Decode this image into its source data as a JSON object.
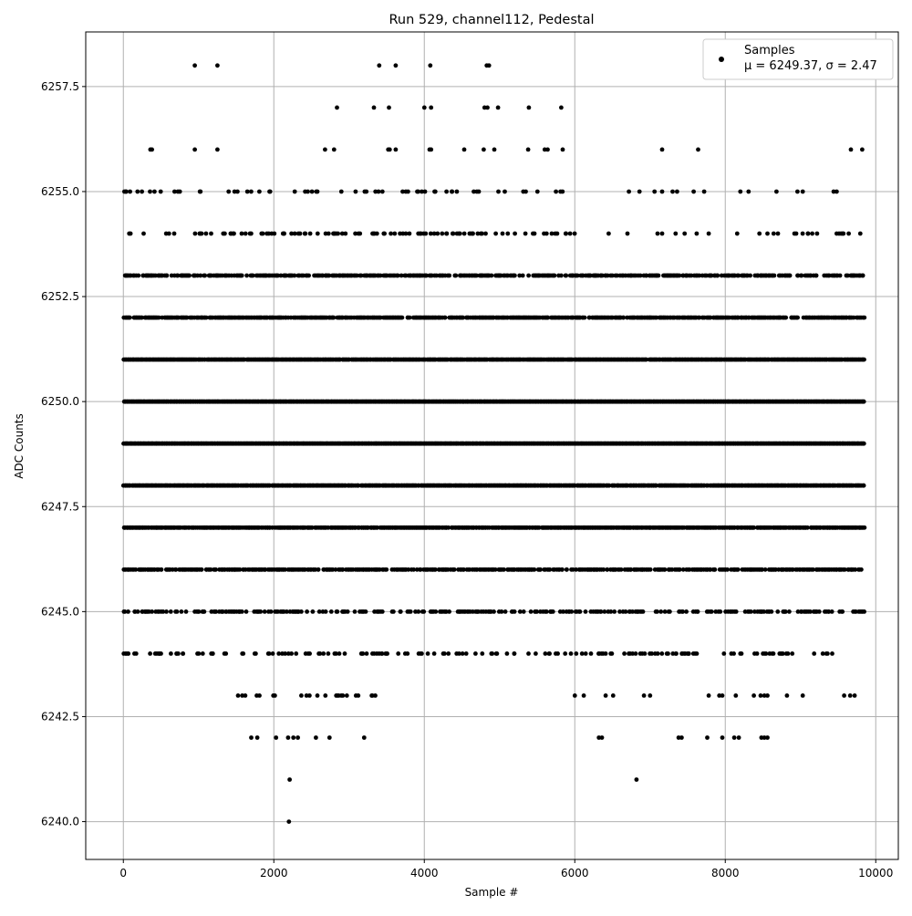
{
  "chart_data": {
    "type": "scatter",
    "title": "Run 529, channel112, Pedestal",
    "xlabel": "Sample #",
    "ylabel": "ADC Counts",
    "xlim": [
      -500,
      10300
    ],
    "ylim": [
      6239.1,
      6258.8
    ],
    "xticks": [
      0,
      2000,
      4000,
      6000,
      8000,
      10000
    ],
    "yticks": [
      6240.0,
      6242.5,
      6245.0,
      6247.5,
      6250.0,
      6252.5,
      6255.0,
      6257.5
    ],
    "grid": true,
    "legend_position": "top-right",
    "legend": {
      "marker_label": "Samples",
      "stats_label": "μ = 6249.37, σ = 2.47"
    },
    "n_samples": 9850,
    "marker_color": "#000000",
    "series": [
      {
        "name": "Samples",
        "points": [
          [
            950,
            6258
          ],
          [
            1250,
            6258
          ],
          [
            3400,
            6258
          ],
          [
            3620,
            6258
          ],
          [
            4080,
            6258
          ],
          [
            4830,
            6258
          ],
          [
            4860,
            6258
          ],
          [
            2840,
            6257
          ],
          [
            3330,
            6257
          ],
          [
            3530,
            6257
          ],
          [
            4000,
            6257
          ],
          [
            4090,
            6257
          ],
          [
            4800,
            6257
          ],
          [
            4840,
            6257
          ],
          [
            4980,
            6257
          ],
          [
            5390,
            6257
          ],
          [
            5820,
            6257
          ],
          [
            360,
            6256
          ],
          [
            380,
            6256
          ],
          [
            950,
            6256
          ],
          [
            1250,
            6256
          ],
          [
            2680,
            6256
          ],
          [
            2800,
            6256
          ],
          [
            3520,
            6256
          ],
          [
            3540,
            6256
          ],
          [
            3620,
            6256
          ],
          [
            4070,
            6256
          ],
          [
            4090,
            6256
          ],
          [
            4530,
            6256
          ],
          [
            4790,
            6256
          ],
          [
            4930,
            6256
          ],
          [
            5380,
            6256
          ],
          [
            5600,
            6256
          ],
          [
            5640,
            6256
          ],
          [
            5840,
            6256
          ],
          [
            7160,
            6256
          ],
          [
            7640,
            6256
          ],
          [
            9670,
            6256
          ],
          [
            9820,
            6256
          ],
          [
            6720,
            6255
          ],
          [
            6860,
            6255
          ],
          [
            7060,
            6255
          ],
          [
            7160,
            6255
          ],
          [
            7300,
            6255
          ],
          [
            7360,
            6255
          ],
          [
            7580,
            6255
          ],
          [
            7720,
            6255
          ],
          [
            8200,
            6255
          ],
          [
            8310,
            6255
          ],
          [
            8680,
            6255
          ],
          [
            8960,
            6255
          ],
          [
            9030,
            6255
          ],
          [
            9440,
            6255
          ],
          [
            9480,
            6255
          ],
          [
            6450,
            6254
          ],
          [
            6700,
            6254
          ],
          [
            7100,
            6254
          ],
          [
            7160,
            6254
          ],
          [
            7340,
            6254
          ],
          [
            7460,
            6254
          ],
          [
            7620,
            6254
          ],
          [
            7780,
            6254
          ],
          [
            8560,
            6254
          ],
          [
            8920,
            6254
          ],
          [
            9100,
            6254
          ],
          [
            9220,
            6254
          ],
          [
            9560,
            6254
          ],
          [
            6000,
            6243
          ],
          [
            6120,
            6243
          ],
          [
            6410,
            6243
          ],
          [
            6510,
            6243
          ],
          [
            6920,
            6243
          ],
          [
            7000,
            6243
          ],
          [
            7780,
            6243
          ],
          [
            7920,
            6243
          ],
          [
            7960,
            6243
          ],
          [
            8140,
            6243
          ],
          [
            8380,
            6243
          ],
          [
            8470,
            6243
          ],
          [
            8520,
            6243
          ],
          [
            8560,
            6243
          ],
          [
            8820,
            6243
          ],
          [
            9030,
            6243
          ],
          [
            9580,
            6243
          ],
          [
            9660,
            6243
          ],
          [
            9720,
            6243
          ],
          [
            1700,
            6242
          ],
          [
            1780,
            6242
          ],
          [
            2030,
            6242
          ],
          [
            2190,
            6242
          ],
          [
            2260,
            6242
          ],
          [
            2320,
            6242
          ],
          [
            2560,
            6242
          ],
          [
            2740,
            6242
          ],
          [
            3200,
            6242
          ],
          [
            6320,
            6242
          ],
          [
            6360,
            6242
          ],
          [
            7380,
            6242
          ],
          [
            7420,
            6242
          ],
          [
            7760,
            6242
          ],
          [
            7960,
            6242
          ],
          [
            8120,
            6242
          ],
          [
            8180,
            6242
          ],
          [
            8480,
            6242
          ],
          [
            8520,
            6242
          ],
          [
            8560,
            6242
          ],
          [
            2210,
            6241
          ],
          [
            6820,
            6241
          ],
          [
            2200,
            6240
          ]
        ],
        "bands": [
          {
            "y": 6255,
            "x_min": 0,
            "x_max": 5960,
            "density": 0.12
          },
          {
            "y": 6254,
            "x_min": 0,
            "x_max": 6000,
            "density": 0.18
          },
          {
            "y": 6254,
            "x_min": 8000,
            "x_max": 9820,
            "density": 0.12
          },
          {
            "y": 6253,
            "x_min": 0,
            "x_max": 9840,
            "density": 0.55
          },
          {
            "y": 6252,
            "x_min": 0,
            "x_max": 9840,
            "density": 0.75
          },
          {
            "y": 6251,
            "x_min": 0,
            "x_max": 9840,
            "density": 0.95
          },
          {
            "y": 6250,
            "x_min": 0,
            "x_max": 9840,
            "density": 1.0
          },
          {
            "y": 6249,
            "x_min": 0,
            "x_max": 9840,
            "density": 1.0
          },
          {
            "y": 6248,
            "x_min": 0,
            "x_max": 9840,
            "density": 0.9
          },
          {
            "y": 6247,
            "x_min": 0,
            "x_max": 9840,
            "density": 0.85
          },
          {
            "y": 6246,
            "x_min": 0,
            "x_max": 9840,
            "density": 0.6
          },
          {
            "y": 6245,
            "x_min": 0,
            "x_max": 9840,
            "density": 0.35
          },
          {
            "y": 6244,
            "x_min": 0,
            "x_max": 9560,
            "density": 0.18
          },
          {
            "y": 6243,
            "x_min": 1480,
            "x_max": 3340,
            "density": 0.12
          }
        ]
      }
    ]
  }
}
